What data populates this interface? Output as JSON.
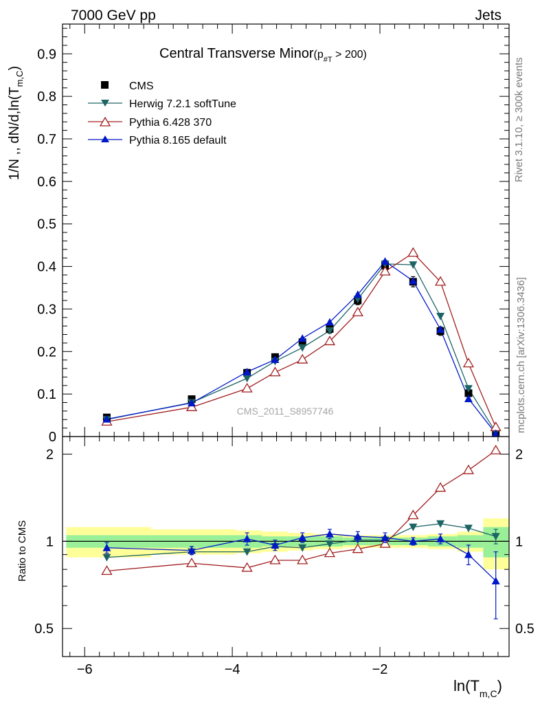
{
  "header": {
    "energy_label": "7000 GeV pp",
    "process_label": "Jets"
  },
  "side_labels": {
    "rivet": "Rivet 3.1.10, ≥ 300k events",
    "source": "mcplots.cern.ch [arXiv:1306.3436]"
  },
  "watermark": "CMS_2011_S8957746",
  "chart_data": {
    "type": "line",
    "title_main": "Central Transverse Minor",
    "title_cut_prefix": "(p",
    "title_cut_sub": "#T",
    "title_cut_suffix": " > 200)",
    "ylabel_main": "1/N ,, dN/d,ln(T",
    "ylabel_sub": "m,C",
    "ylabel_close": ")",
    "xlabel_main": "ln(T",
    "xlabel_sub": "m,C",
    "xlabel_close": ")",
    "ratio_ylabel": "Ratio to CMS",
    "xlim": [
      -6.3,
      -0.25
    ],
    "ylim": [
      0,
      0.97
    ],
    "ratio_ylim": [
      0.4,
      2.3
    ],
    "x_ticks": [
      -6,
      -4,
      -2
    ],
    "x_tick_labels": [
      "−6",
      "−4",
      "−2"
    ],
    "y_ticks": [
      0,
      0.1,
      0.2,
      0.3,
      0.4,
      0.5,
      0.6,
      0.7,
      0.8,
      0.9
    ],
    "y_tick_labels": [
      "0",
      "0.1",
      "0.2",
      "0.3",
      "0.4",
      "0.5",
      "0.6",
      "0.7",
      "0.8",
      "0.9"
    ],
    "ratio_ticks": [
      0.5,
      1,
      2
    ],
    "ratio_tick_labels": [
      "0.5",
      "1",
      "2"
    ],
    "x": [
      -5.7,
      -4.55,
      -3.8,
      -3.42,
      -3.05,
      -2.68,
      -2.3,
      -1.93,
      -1.55,
      -1.18,
      -0.8,
      -0.43
    ],
    "bin_edges": [
      -6.25,
      -5.1,
      -3.95,
      -3.6,
      -3.25,
      -2.9,
      -2.5,
      -2.15,
      -1.75,
      -1.35,
      -0.95,
      -0.6,
      -0.25
    ],
    "series": [
      {
        "name": "CMS",
        "marker": "square",
        "color": "#000000",
        "values": [
          0.045,
          0.088,
          0.15,
          0.187,
          0.222,
          0.253,
          0.32,
          0.402,
          0.364,
          0.248,
          0.102,
          0.01
        ],
        "errors": [
          0.004,
          0.004,
          0.008,
          0.007,
          0.009,
          0.01,
          0.01,
          0.012,
          0.012,
          0.01,
          0.008,
          0.003
        ],
        "ratio_band_inner": [
          0.05,
          0.05,
          0.05,
          0.04,
          0.04,
          0.04,
          0.03,
          0.03,
          0.03,
          0.04,
          0.05,
          0.12
        ],
        "ratio_band_outer": [
          0.12,
          0.1,
          0.09,
          0.08,
          0.07,
          0.06,
          0.05,
          0.05,
          0.05,
          0.06,
          0.08,
          0.2
        ]
      },
      {
        "name": "Herwig 7.2.1 softTune",
        "marker": "triangle-down",
        "color": "#1d6464",
        "values": [
          0.04,
          0.08,
          0.137,
          0.177,
          0.209,
          0.249,
          0.323,
          0.406,
          0.404,
          0.283,
          0.113,
          0.01
        ],
        "ratio": [
          0.88,
          0.92,
          0.92,
          0.96,
          0.95,
          0.98,
          1.01,
          1.01,
          1.12,
          1.15,
          1.11,
          1.04
        ],
        "ratio_errors": [
          0,
          0,
          0,
          0,
          0,
          0,
          0,
          0,
          0,
          0,
          0,
          0.06
        ]
      },
      {
        "name": "Pythia 6.428 370",
        "marker": "triangle-up-open",
        "color": "#a01e1e",
        "values": [
          0.035,
          0.069,
          0.113,
          0.151,
          0.181,
          0.224,
          0.292,
          0.388,
          0.432,
          0.364,
          0.172,
          0.022
        ],
        "ratio": [
          0.79,
          0.84,
          0.81,
          0.86,
          0.86,
          0.91,
          0.94,
          0.98,
          1.23,
          1.53,
          1.76,
          2.06
        ],
        "ratio_errors": [
          0,
          0,
          0,
          0,
          0,
          0,
          0,
          0,
          0,
          0,
          0,
          0.04
        ]
      },
      {
        "name": "Pythia 8.165 default",
        "marker": "triangle-up",
        "color": "#0018c8",
        "values": [
          0.041,
          0.079,
          0.152,
          0.181,
          0.231,
          0.269,
          0.334,
          0.412,
          0.366,
          0.252,
          0.089,
          0.007
        ],
        "ratio": [
          0.95,
          0.93,
          1.02,
          0.97,
          1.03,
          1.06,
          1.04,
          1.03,
          1.0,
          1.02,
          0.9,
          0.73
        ],
        "ratio_errors": [
          0.04,
          0.03,
          0.05,
          0.04,
          0.04,
          0.04,
          0.04,
          0.04,
          0.03,
          0.04,
          0.07,
          0.19
        ]
      }
    ]
  }
}
